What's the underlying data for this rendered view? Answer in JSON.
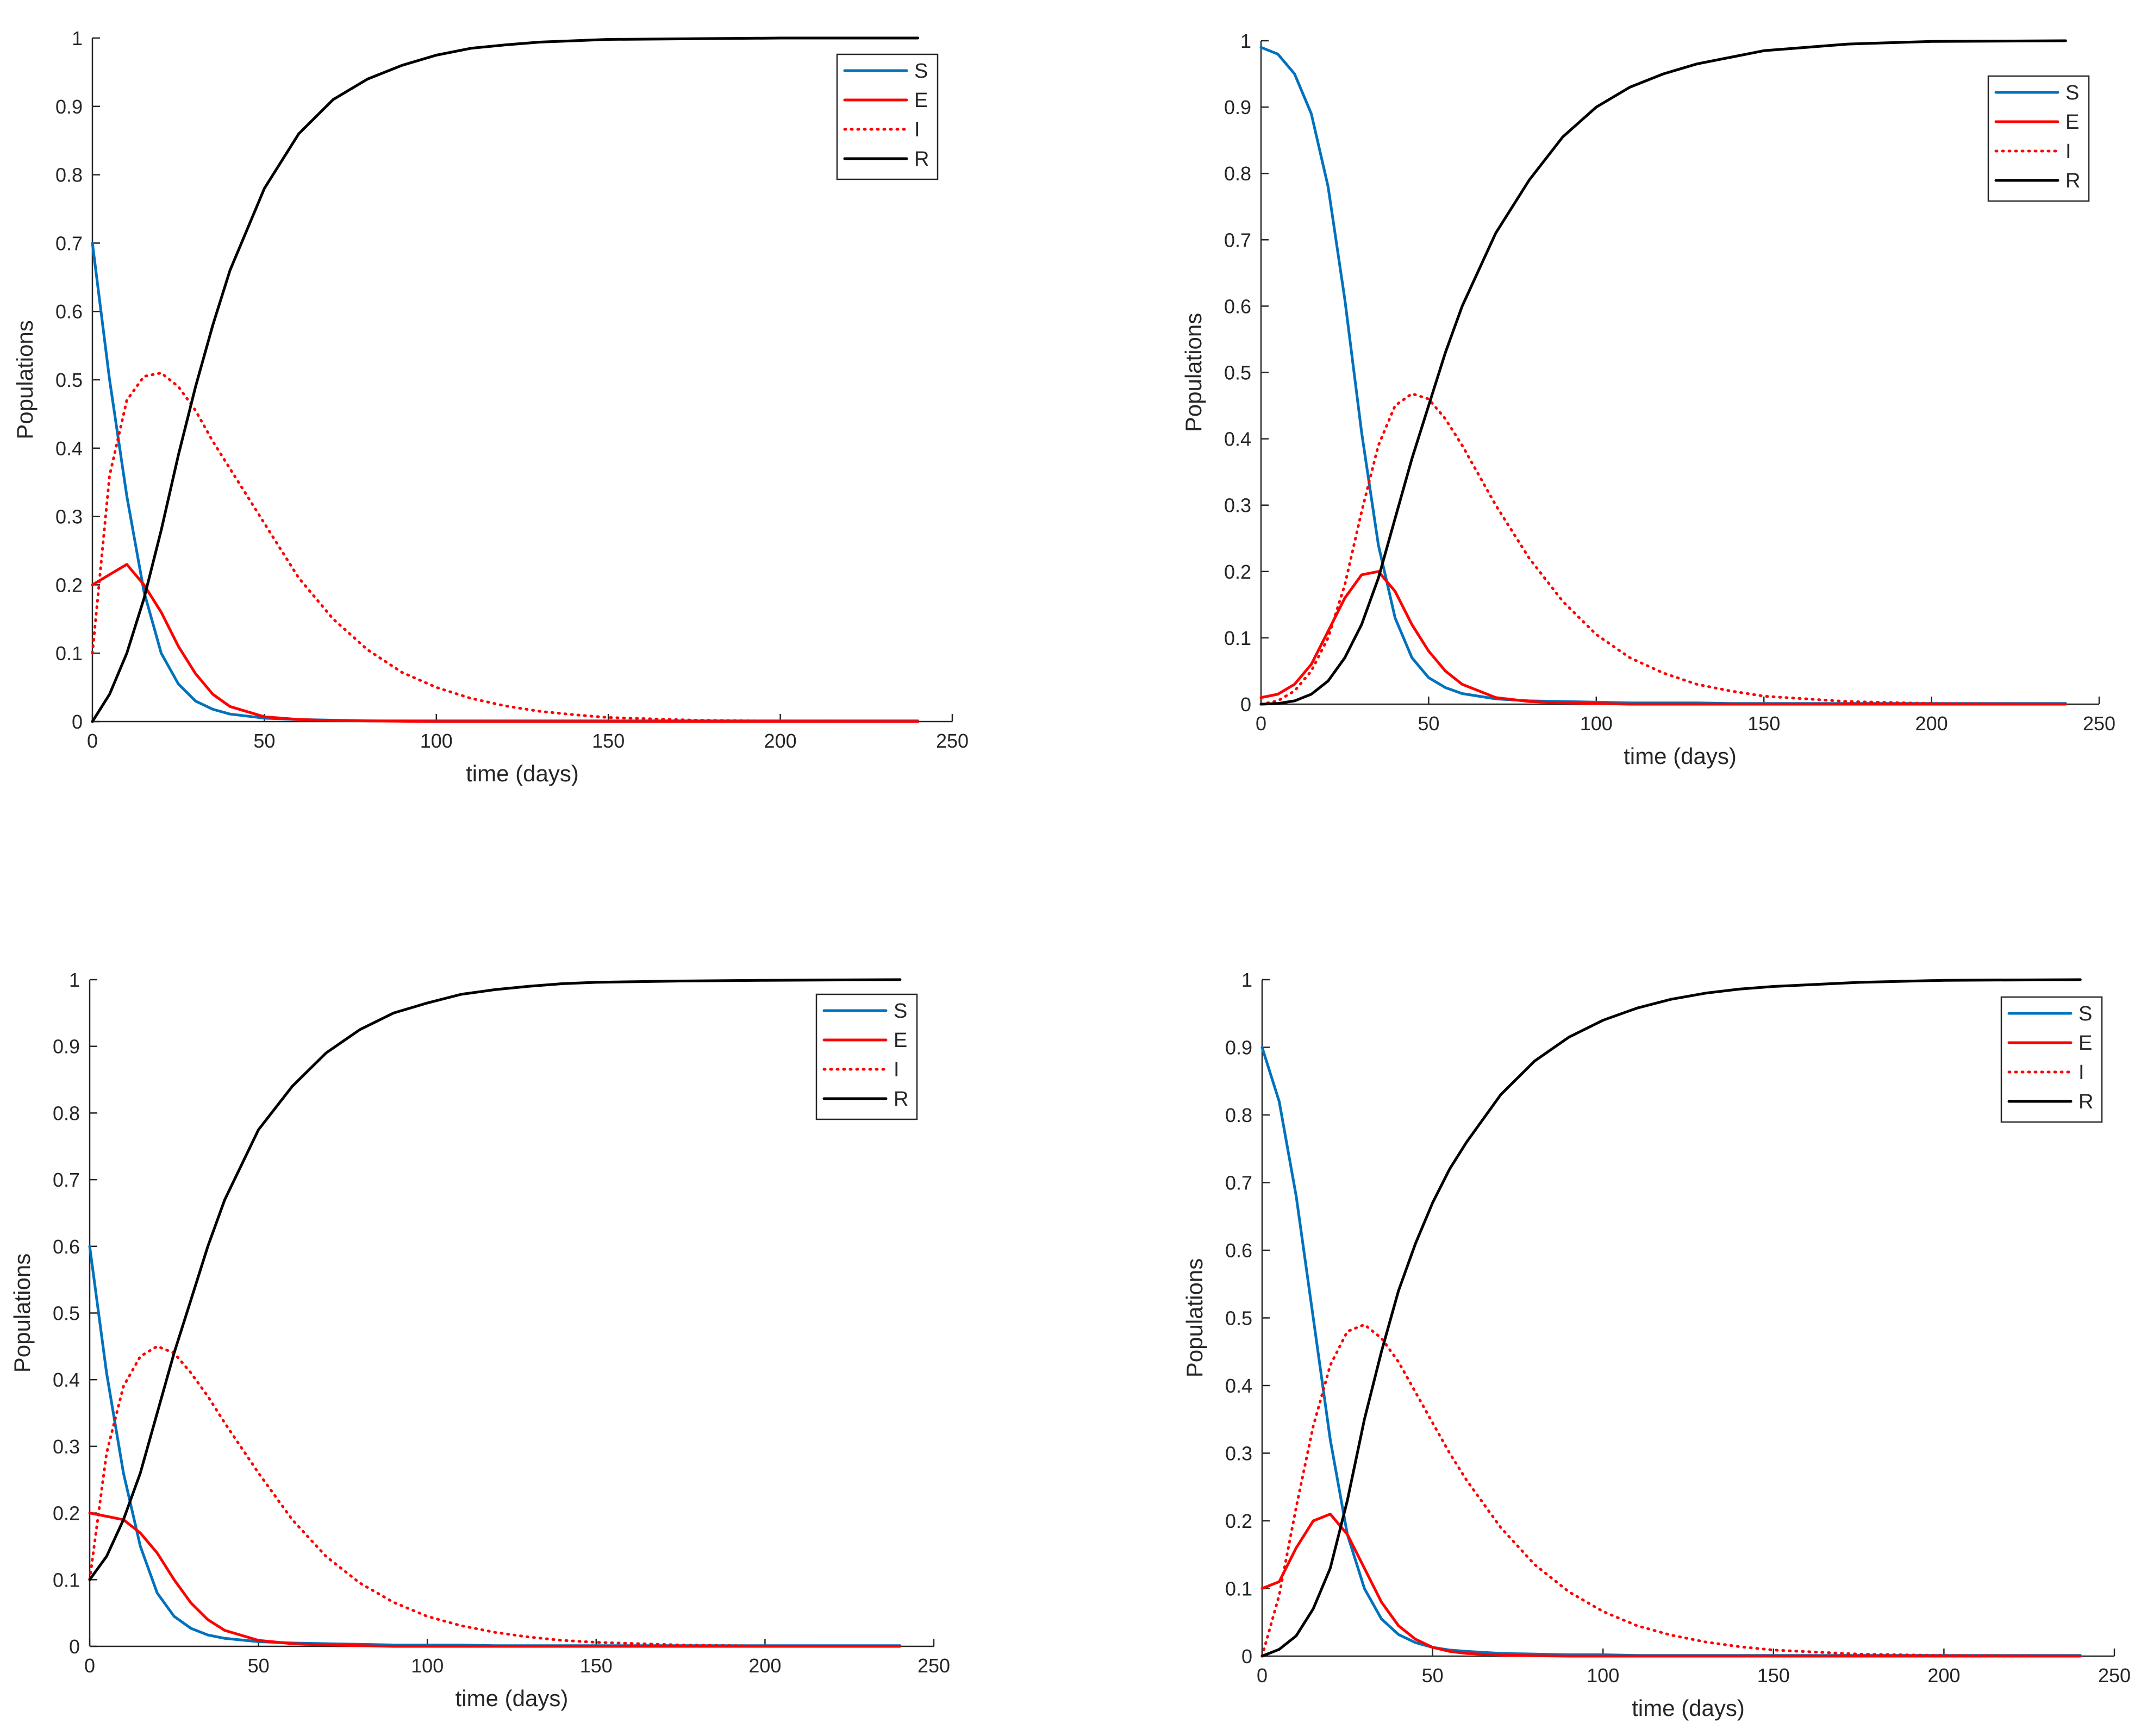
{
  "colors": {
    "S": "#0072BD",
    "E": "#FF0000",
    "I": "#FF0000",
    "R": "#000000",
    "axis": "#262626"
  },
  "chart_data": [
    {
      "type": "line",
      "panel": "top-left",
      "xlabel": "time (days)",
      "ylabel": "Populations",
      "xlim": [
        0,
        250
      ],
      "ylim": [
        0,
        1
      ],
      "xticks": [
        "0",
        "50",
        "100",
        "150",
        "200",
        "250"
      ],
      "yticks": [
        "0",
        "0.1",
        "0.2",
        "0.3",
        "0.4",
        "0.5",
        "0.6",
        "0.7",
        "0.8",
        "0.9",
        "1"
      ],
      "legend_position": "top-right",
      "legend": [
        "S",
        "E",
        "I",
        "R"
      ],
      "x": [
        0,
        5,
        10,
        15,
        20,
        25,
        30,
        35,
        40,
        50,
        60,
        70,
        80,
        90,
        100,
        110,
        120,
        130,
        140,
        150,
        175,
        200,
        240
      ],
      "series": [
        {
          "name": "S",
          "style": "solid",
          "values": [
            0.7,
            0.5,
            0.33,
            0.19,
            0.1,
            0.055,
            0.03,
            0.018,
            0.011,
            0.005,
            0.003,
            0.002,
            0.001,
            0.001,
            0.001,
            0.001,
            0.001,
            0.001,
            0.001,
            0.001,
            0.001,
            0.001,
            0.001
          ]
        },
        {
          "name": "E",
          "style": "solid",
          "values": [
            0.2,
            0.215,
            0.23,
            0.2,
            0.16,
            0.11,
            0.07,
            0.04,
            0.022,
            0.007,
            0.003,
            0.0015,
            0.001,
            0.0005,
            0,
            0,
            0,
            0,
            0,
            0,
            0,
            0,
            0
          ]
        },
        {
          "name": "I",
          "style": "dotted",
          "values": [
            0.1,
            0.36,
            0.47,
            0.505,
            0.51,
            0.49,
            0.455,
            0.41,
            0.37,
            0.29,
            0.21,
            0.15,
            0.105,
            0.072,
            0.05,
            0.034,
            0.023,
            0.015,
            0.01,
            0.006,
            0.002,
            0.0005,
            0
          ]
        },
        {
          "name": "R",
          "style": "solid",
          "values": [
            0,
            0.04,
            0.1,
            0.18,
            0.28,
            0.39,
            0.49,
            0.58,
            0.66,
            0.78,
            0.86,
            0.91,
            0.94,
            0.96,
            0.975,
            0.985,
            0.99,
            0.994,
            0.996,
            0.998,
            0.999,
            1.0,
            1.0
          ]
        }
      ]
    },
    {
      "type": "line",
      "panel": "top-right",
      "xlabel": "time (days)",
      "ylabel": "Populations",
      "xlim": [
        0,
        250
      ],
      "ylim": [
        0,
        1
      ],
      "xticks": [
        "0",
        "50",
        "100",
        "150",
        "200",
        "250"
      ],
      "yticks": [
        "0",
        "0.1",
        "0.2",
        "0.3",
        "0.4",
        "0.5",
        "0.6",
        "0.7",
        "0.8",
        "0.9",
        "1"
      ],
      "legend_position": "top-right",
      "legend": [
        "S",
        "E",
        "I",
        "R"
      ],
      "x": [
        0,
        5,
        10,
        15,
        20,
        25,
        30,
        35,
        40,
        45,
        50,
        55,
        60,
        70,
        80,
        90,
        100,
        110,
        120,
        130,
        140,
        150,
        175,
        200,
        240
      ],
      "series": [
        {
          "name": "S",
          "style": "solid",
          "values": [
            0.99,
            0.98,
            0.95,
            0.89,
            0.78,
            0.61,
            0.41,
            0.24,
            0.13,
            0.07,
            0.04,
            0.025,
            0.016,
            0.008,
            0.005,
            0.004,
            0.003,
            0.002,
            0.002,
            0.002,
            0.001,
            0.001,
            0.001,
            0.001,
            0.001
          ]
        },
        {
          "name": "E",
          "style": "solid",
          "values": [
            0.01,
            0.015,
            0.03,
            0.06,
            0.11,
            0.16,
            0.195,
            0.2,
            0.17,
            0.12,
            0.08,
            0.05,
            0.03,
            0.01,
            0.004,
            0.002,
            0.001,
            0,
            0,
            0,
            0,
            0,
            0,
            0,
            0
          ]
        },
        {
          "name": "I",
          "style": "dotted",
          "values": [
            0,
            0.005,
            0.02,
            0.05,
            0.1,
            0.18,
            0.29,
            0.39,
            0.45,
            0.468,
            0.46,
            0.43,
            0.39,
            0.3,
            0.22,
            0.155,
            0.105,
            0.07,
            0.047,
            0.03,
            0.02,
            0.012,
            0.004,
            0.001,
            0
          ]
        },
        {
          "name": "R",
          "style": "solid",
          "values": [
            0,
            0.001,
            0.005,
            0.015,
            0.035,
            0.07,
            0.12,
            0.19,
            0.28,
            0.37,
            0.45,
            0.53,
            0.6,
            0.71,
            0.79,
            0.855,
            0.9,
            0.93,
            0.95,
            0.965,
            0.975,
            0.985,
            0.995,
            0.999,
            1.0
          ]
        }
      ]
    },
    {
      "type": "line",
      "panel": "bottom-left",
      "xlabel": "time (days)",
      "ylabel": "Populations",
      "xlim": [
        0,
        250
      ],
      "ylim": [
        0,
        1
      ],
      "xticks": [
        "0",
        "50",
        "100",
        "150",
        "200",
        "250"
      ],
      "yticks": [
        "0",
        "0.1",
        "0.2",
        "0.3",
        "0.4",
        "0.5",
        "0.6",
        "0.7",
        "0.8",
        "0.9",
        "1"
      ],
      "legend_position": "top-right",
      "legend": [
        "S",
        "E",
        "I",
        "R"
      ],
      "x": [
        0,
        5,
        10,
        15,
        20,
        25,
        30,
        35,
        40,
        50,
        60,
        70,
        80,
        90,
        100,
        110,
        120,
        130,
        140,
        150,
        175,
        200,
        240
      ],
      "series": [
        {
          "name": "S",
          "style": "solid",
          "values": [
            0.6,
            0.41,
            0.26,
            0.15,
            0.08,
            0.045,
            0.027,
            0.017,
            0.012,
            0.007,
            0.005,
            0.004,
            0.003,
            0.002,
            0.002,
            0.002,
            0.001,
            0.001,
            0.001,
            0.001,
            0.001,
            0.001,
            0.001
          ]
        },
        {
          "name": "E",
          "style": "solid",
          "values": [
            0.2,
            0.195,
            0.19,
            0.17,
            0.14,
            0.1,
            0.065,
            0.04,
            0.024,
            0.009,
            0.004,
            0.002,
            0.001,
            0,
            0,
            0,
            0,
            0,
            0,
            0,
            0,
            0,
            0
          ]
        },
        {
          "name": "I",
          "style": "dotted",
          "values": [
            0.1,
            0.29,
            0.39,
            0.435,
            0.45,
            0.44,
            0.41,
            0.375,
            0.335,
            0.26,
            0.19,
            0.135,
            0.095,
            0.066,
            0.045,
            0.031,
            0.021,
            0.014,
            0.009,
            0.006,
            0.002,
            0.0005,
            0
          ]
        },
        {
          "name": "R",
          "style": "solid",
          "values": [
            0.1,
            0.135,
            0.19,
            0.26,
            0.35,
            0.44,
            0.52,
            0.6,
            0.67,
            0.775,
            0.84,
            0.89,
            0.925,
            0.95,
            0.965,
            0.978,
            0.985,
            0.99,
            0.994,
            0.996,
            0.998,
            0.999,
            1.0
          ]
        }
      ]
    },
    {
      "type": "line",
      "panel": "bottom-right",
      "xlabel": "time (days)",
      "ylabel": "Populations",
      "xlim": [
        0,
        250
      ],
      "ylim": [
        0,
        1
      ],
      "xticks": [
        "0",
        "50",
        "100",
        "150",
        "200",
        "250"
      ],
      "yticks": [
        "0",
        "0.1",
        "0.2",
        "0.3",
        "0.4",
        "0.5",
        "0.6",
        "0.7",
        "0.8",
        "0.9",
        "1"
      ],
      "legend_position": "top-right",
      "legend": [
        "S",
        "E",
        "I",
        "R"
      ],
      "x": [
        0,
        5,
        10,
        15,
        20,
        25,
        30,
        35,
        40,
        45,
        50,
        55,
        60,
        70,
        80,
        90,
        100,
        110,
        120,
        130,
        140,
        150,
        175,
        200,
        240
      ],
      "series": [
        {
          "name": "S",
          "style": "solid",
          "values": [
            0.9,
            0.82,
            0.68,
            0.5,
            0.32,
            0.18,
            0.1,
            0.055,
            0.032,
            0.02,
            0.013,
            0.009,
            0.007,
            0.004,
            0.003,
            0.002,
            0.002,
            0.001,
            0.001,
            0.001,
            0.001,
            0.001,
            0.001,
            0.001,
            0.001
          ]
        },
        {
          "name": "E",
          "style": "solid",
          "values": [
            0.1,
            0.11,
            0.16,
            0.2,
            0.21,
            0.18,
            0.13,
            0.08,
            0.045,
            0.025,
            0.013,
            0.007,
            0.004,
            0.0015,
            0.0005,
            0,
            0,
            0,
            0,
            0,
            0,
            0,
            0,
            0,
            0
          ]
        },
        {
          "name": "I",
          "style": "dotted",
          "values": [
            0,
            0.09,
            0.22,
            0.34,
            0.43,
            0.48,
            0.49,
            0.47,
            0.435,
            0.39,
            0.345,
            0.3,
            0.26,
            0.19,
            0.135,
            0.095,
            0.066,
            0.045,
            0.031,
            0.021,
            0.014,
            0.009,
            0.003,
            0.001,
            0
          ]
        },
        {
          "name": "R",
          "style": "solid",
          "values": [
            0,
            0.01,
            0.03,
            0.07,
            0.13,
            0.23,
            0.35,
            0.45,
            0.54,
            0.61,
            0.67,
            0.72,
            0.76,
            0.83,
            0.88,
            0.915,
            0.94,
            0.958,
            0.971,
            0.98,
            0.986,
            0.99,
            0.996,
            0.999,
            1.0
          ]
        }
      ]
    }
  ]
}
